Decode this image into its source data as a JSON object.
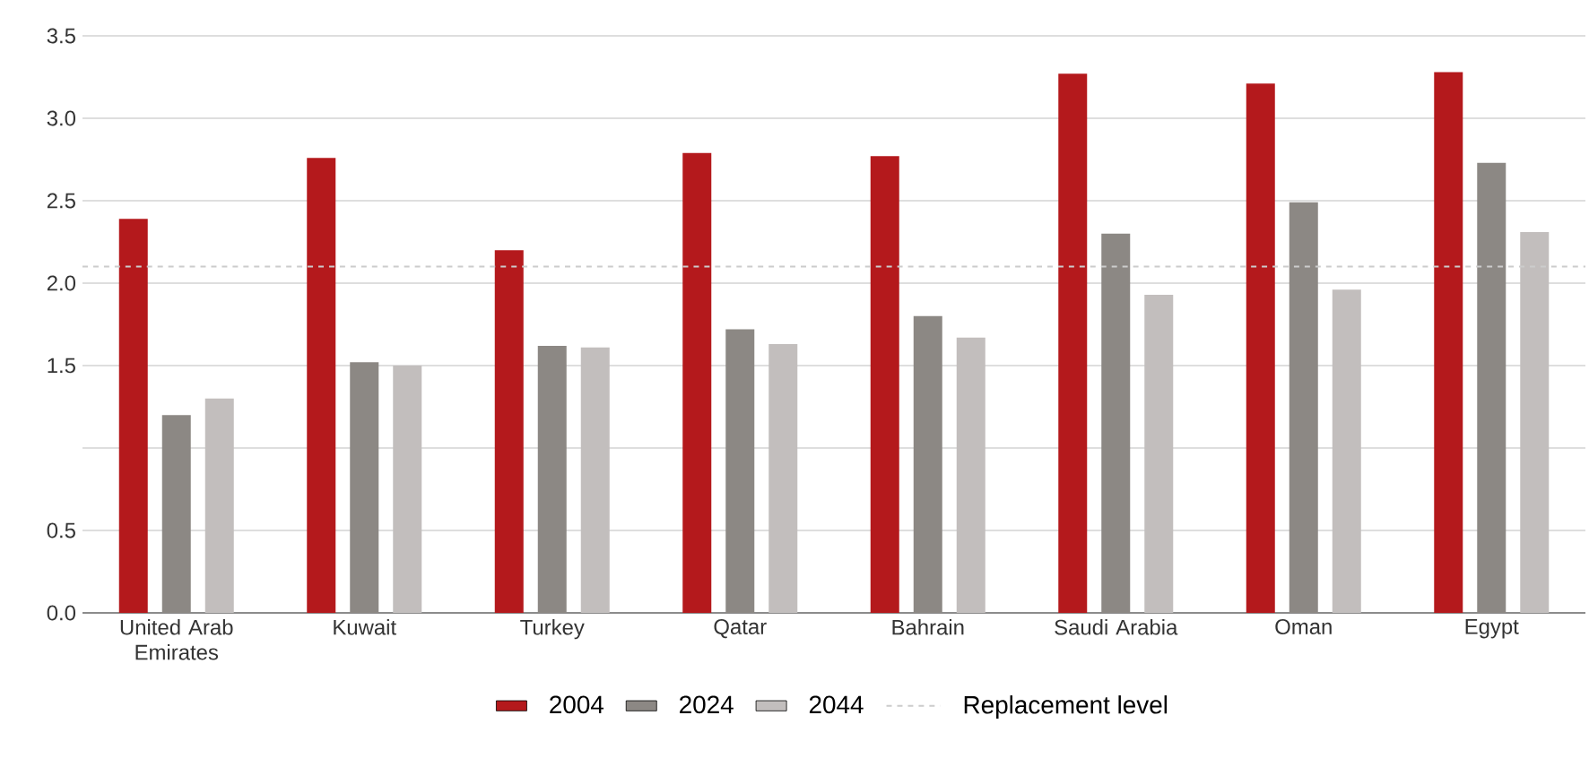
{
  "chart_data": {
    "type": "bar",
    "categories": [
      "United Arab Emirates",
      "Kuwait",
      "Turkey",
      "Qatar",
      "Bahrain",
      "Saudi Arabia",
      "Oman",
      "Egypt"
    ],
    "series": [
      {
        "name": "2004",
        "color": "#b4191c",
        "values": [
          2.39,
          2.76,
          2.2,
          2.79,
          2.77,
          3.27,
          3.21,
          3.28
        ]
      },
      {
        "name": "2024",
        "color": "#8c8884",
        "values": [
          1.2,
          1.52,
          1.62,
          1.72,
          1.8,
          2.3,
          2.49,
          2.73
        ]
      },
      {
        "name": "2044",
        "color": "#c2bebd",
        "values": [
          1.3,
          1.5,
          1.61,
          1.63,
          1.67,
          1.93,
          1.96,
          2.31
        ]
      }
    ],
    "ylim": [
      0,
      3.5
    ],
    "yticks": [
      {
        "value": 0,
        "label": "0.0"
      },
      {
        "value": 0.5,
        "label": "0.5"
      },
      {
        "value": 1,
        "label": null
      },
      {
        "value": 1.5,
        "label": "1.5"
      },
      {
        "value": 2,
        "label": "2.0"
      },
      {
        "value": 2.5,
        "label": "2.5"
      },
      {
        "value": 3,
        "label": "3.0"
      },
      {
        "value": 3.5,
        "label": "3.5"
      }
    ],
    "ref_lines": [
      {
        "axis": "y",
        "value": 2.1,
        "label": "Replacement level",
        "color": "#cccccc",
        "line_style": "dashed"
      }
    ],
    "grid": "y",
    "legend": "bottom"
  }
}
